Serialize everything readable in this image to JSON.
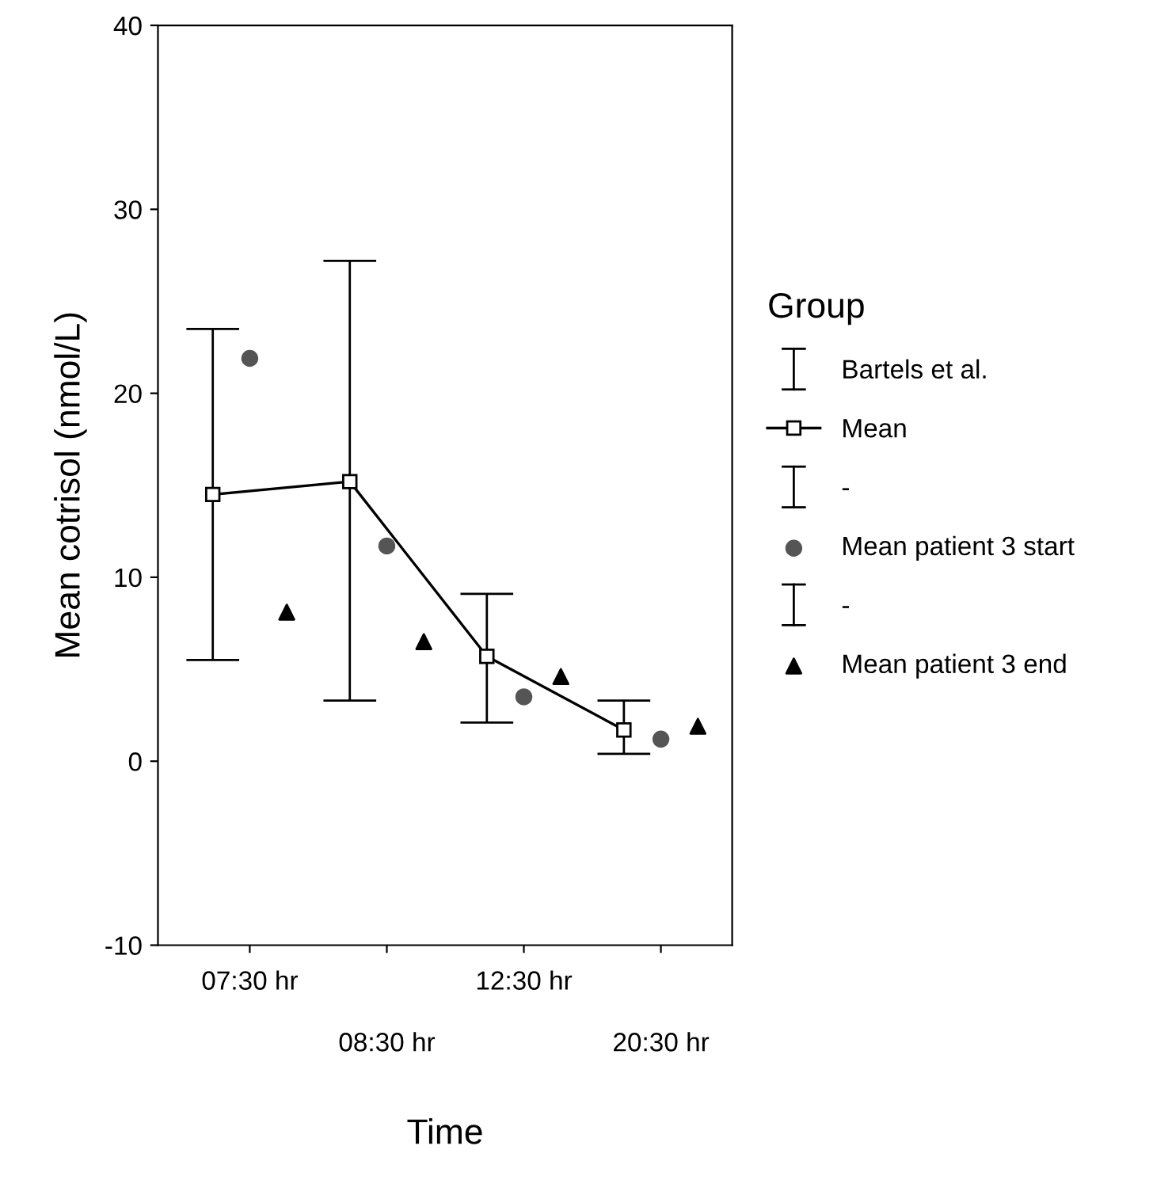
{
  "chart_data": {
    "type": "line",
    "xlabel": "Time",
    "ylabel": "Mean cotrisol (nmol/L)",
    "legend_title": "Group",
    "categories": [
      "07:30 hr",
      "08:30 hr",
      "12:30 hr",
      "20:30 hr"
    ],
    "series": [
      {
        "name": "Mean",
        "color": "#000000",
        "marker": "square",
        "line_style": "solid",
        "values": [
          14.5,
          15.2,
          5.7,
          1.7
        ],
        "errors": [
          [
            5.5,
            23.5
          ],
          [
            3.3,
            27.2
          ],
          [
            2.1,
            9.1
          ],
          [
            0.4,
            3.3
          ]
        ]
      },
      {
        "name": "Mean patient 3 start",
        "type": "scatter",
        "color": "#555555",
        "marker": "circle",
        "values": [
          21.9,
          11.7,
          3.5,
          1.2
        ]
      },
      {
        "name": "Mean patient 3 end",
        "type": "scatter",
        "color": "#000000",
        "marker": "triangle",
        "values": [
          8.1,
          6.5,
          4.6,
          1.9
        ]
      }
    ],
    "annotations": [
      "Bartels et al.",
      "-",
      "-"
    ],
    "ylim": [
      -10,
      40
    ],
    "yticks": [
      -10,
      0,
      10,
      20,
      30,
      40
    ],
    "grid": false,
    "legend": "right"
  }
}
